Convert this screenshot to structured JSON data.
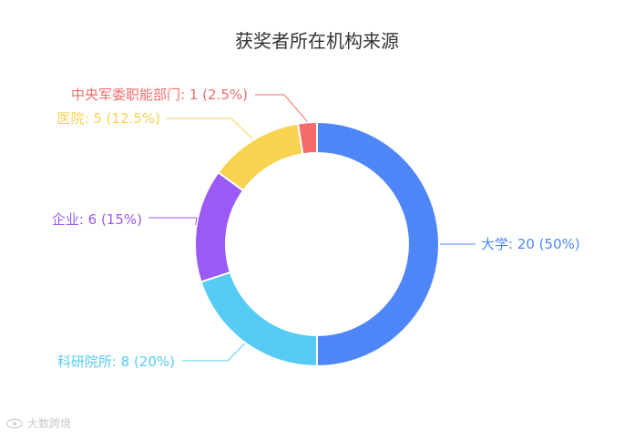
{
  "chart_data": {
    "type": "pie",
    "title": "获奖者所在机构来源",
    "donut": true,
    "slices": [
      {
        "label": "大学",
        "value": 20,
        "percent": "50%",
        "color": "#4f86f7"
      },
      {
        "label": "科研院所",
        "value": 8,
        "percent": "20%",
        "color": "#55cbf5"
      },
      {
        "label": "企业",
        "value": 6,
        "percent": "15%",
        "color": "#9b59f5"
      },
      {
        "label": "医院",
        "value": 5,
        "percent": "12.5%",
        "color": "#f8d34f"
      },
      {
        "label": "中央军委职能部门",
        "value": 1,
        "percent": "2.5%",
        "color": "#f56b6b"
      }
    ]
  },
  "watermark": {
    "text": "大数跨境",
    "icon": "eye-logo-icon"
  }
}
